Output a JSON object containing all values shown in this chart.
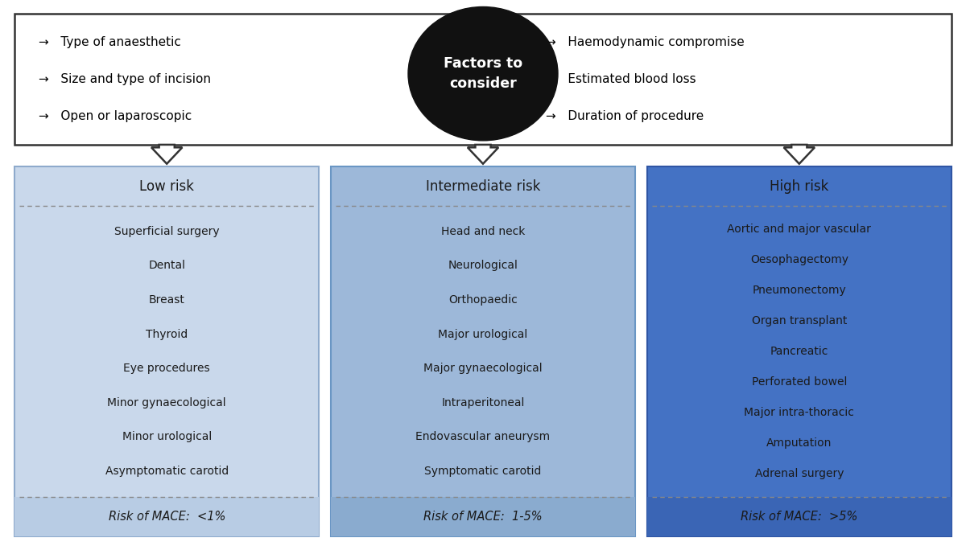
{
  "fig_width": 12.0,
  "fig_height": 6.79,
  "dpi": 100,
  "bg_color": "#ffffff",
  "top_box": {
    "left_items": [
      "→   Type of anaesthetic",
      "→   Size and type of incision",
      "→   Open or laparoscopic"
    ],
    "right_items": [
      "→   Haemodynamic compromise",
      "→   Estimated blood loss",
      "→   Duration of procedure"
    ],
    "center_text": "Factors to\nconsider",
    "box_color": "#ffffff",
    "border_color": "#333333",
    "circle_color": "#111111",
    "circle_text_color": "#ffffff"
  },
  "columns": [
    {
      "title": "Low risk",
      "items": [
        "Superficial surgery",
        "Dental",
        "Breast",
        "Thyroid",
        "Eye procedures",
        "Minor gynaecological",
        "Minor urological",
        "Asymptomatic carotid"
      ],
      "footer": "Risk of MACE:  <1%",
      "bg_color": "#c9d8eb",
      "footer_bg": "#b8cce4",
      "border_color": "#8eaacc",
      "text_color": "#1f2d3d"
    },
    {
      "title": "Intermediate risk",
      "items": [
        "Head and neck",
        "Neurological",
        "Orthopaedic",
        "Major urological",
        "Major gynaecological",
        "Intraperitoneal",
        "Endovascular aneurysm",
        "Symptomatic carotid"
      ],
      "footer": "Risk of MACE:  1-5%",
      "bg_color": "#9db8d9",
      "footer_bg": "#8aabcf",
      "border_color": "#6a96c4",
      "text_color": "#1f2d3d"
    },
    {
      "title": "High risk",
      "items": [
        "Aortic and major vascular",
        "Oesophagectomy",
        "Pneumonectomy",
        "Organ transplant",
        "Pancreatic",
        "Perforated bowel",
        "Major intra-thoracic",
        "Amputation",
        "Adrenal surgery"
      ],
      "footer": "Risk of MACE:  >5%",
      "bg_color": "#4472c4",
      "footer_bg": "#3a65b5",
      "border_color": "#2f55a4",
      "text_color": "#ffffff"
    }
  ],
  "arrow_color": "#333333",
  "dashed_line_color": "#888888"
}
